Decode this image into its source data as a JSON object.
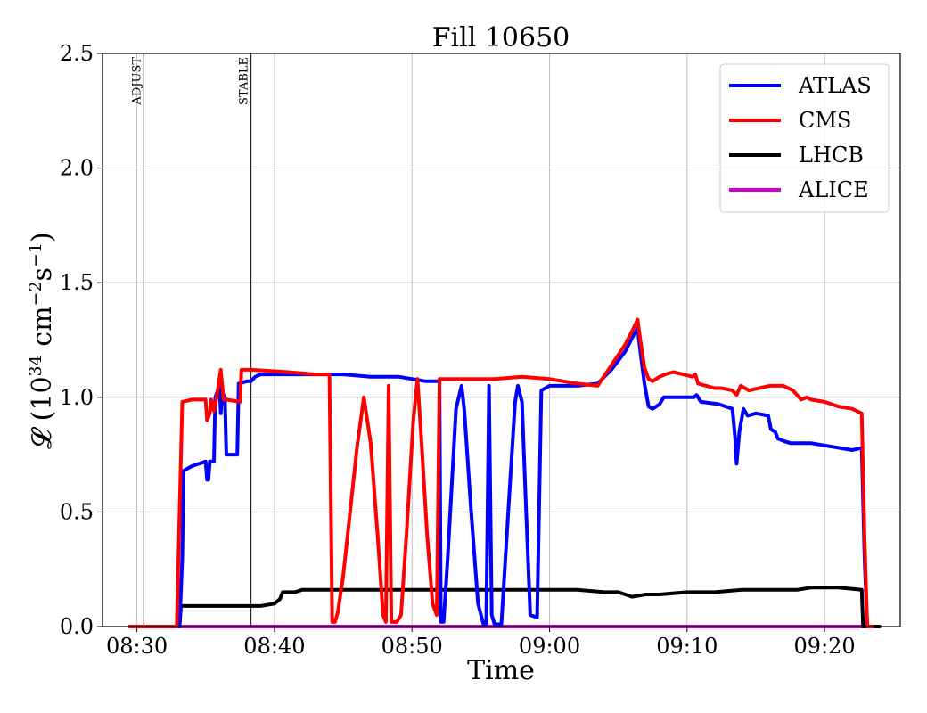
{
  "chart_data": {
    "type": "line",
    "title": "Fill 10650",
    "xlabel": "Time",
    "ylabel": "𝓛 (10",
    "ylabel_sup1": "34",
    "ylabel_mid": " cm",
    "ylabel_sup2": "−2",
    "ylabel_s": "s",
    "ylabel_sup3": "−1",
    "ylabel_end": ")",
    "x_ticks": [
      "08:30",
      "08:40",
      "08:50",
      "09:00",
      "09:10",
      "09:20"
    ],
    "x_tick_minutes": [
      0,
      10,
      20,
      30,
      40,
      50
    ],
    "x_range_minutes": [
      -2.5,
      55.5
    ],
    "y_ticks": [
      "0.0",
      "0.5",
      "1.0",
      "1.5",
      "2.0",
      "2.5"
    ],
    "ylim": [
      0,
      2.5
    ],
    "grid": true,
    "legend_position": "top-right",
    "markers": [
      {
        "label": "ADJUST",
        "t": 0.5
      },
      {
        "label": "STABLE",
        "t": 8.3
      }
    ],
    "series": [
      {
        "name": "ATLAS",
        "color": "#0000ff",
        "points": [
          [
            -0.5,
            0
          ],
          [
            3.1,
            0
          ],
          [
            3.3,
            0.3
          ],
          [
            3.4,
            0.68
          ],
          [
            4,
            0.7
          ],
          [
            5.0,
            0.72
          ],
          [
            5.1,
            0.64
          ],
          [
            5.2,
            0.64
          ],
          [
            5.3,
            0.72
          ],
          [
            5.6,
            0.72
          ],
          [
            5.7,
            1.0
          ],
          [
            6.0,
            1.05
          ],
          [
            6.1,
            0.93
          ],
          [
            6.2,
            1.02
          ],
          [
            6.4,
            1.0
          ],
          [
            6.5,
            0.75
          ],
          [
            7.3,
            0.75
          ],
          [
            7.4,
            1.06
          ],
          [
            8.0,
            1.07
          ],
          [
            8.3,
            1.07
          ],
          [
            8.6,
            1.09
          ],
          [
            9.0,
            1.1
          ],
          [
            11,
            1.1
          ],
          [
            13,
            1.1
          ],
          [
            15,
            1.1
          ],
          [
            17,
            1.09
          ],
          [
            19,
            1.09
          ],
          [
            20,
            1.08
          ],
          [
            21,
            1.07
          ],
          [
            22,
            1.07
          ],
          [
            22.1,
            0.02
          ],
          [
            22.3,
            0.02
          ],
          [
            22.6,
            0.3
          ],
          [
            23.2,
            0.95
          ],
          [
            23.6,
            1.05
          ],
          [
            23.8,
            0.95
          ],
          [
            24.3,
            0.5
          ],
          [
            24.8,
            0.1
          ],
          [
            25.2,
            0.01
          ],
          [
            25.4,
            0.01
          ],
          [
            25.6,
            1.05
          ],
          [
            25.8,
            0.05
          ],
          [
            26.0,
            0.01
          ],
          [
            26.5,
            0.01
          ],
          [
            27.0,
            0.5
          ],
          [
            27.5,
            0.98
          ],
          [
            27.7,
            1.05
          ],
          [
            28.0,
            0.98
          ],
          [
            28.3,
            0.5
          ],
          [
            28.6,
            0.05
          ],
          [
            29.1,
            0.04
          ],
          [
            29.4,
            1.03
          ],
          [
            30,
            1.05
          ],
          [
            32,
            1.05
          ],
          [
            33.5,
            1.06
          ],
          [
            34.5,
            1.12
          ],
          [
            35.5,
            1.2
          ],
          [
            36.1,
            1.27
          ],
          [
            36.4,
            1.3
          ],
          [
            36.6,
            1.2
          ],
          [
            36.9,
            1.06
          ],
          [
            37.2,
            0.96
          ],
          [
            37.5,
            0.95
          ],
          [
            38.0,
            0.97
          ],
          [
            38.3,
            1.0
          ],
          [
            39,
            1.0
          ],
          [
            40.5,
            1.0
          ],
          [
            40.7,
            1.01
          ],
          [
            41,
            0.98
          ],
          [
            42.3,
            0.97
          ],
          [
            43.3,
            0.95
          ],
          [
            43.5,
            0.82
          ],
          [
            43.6,
            0.71
          ],
          [
            43.8,
            0.85
          ],
          [
            44.1,
            0.95
          ],
          [
            44.4,
            0.92
          ],
          [
            45.0,
            0.93
          ],
          [
            45.9,
            0.92
          ],
          [
            46.1,
            0.86
          ],
          [
            46.4,
            0.85
          ],
          [
            46.6,
            0.82
          ],
          [
            47.0,
            0.81
          ],
          [
            47.5,
            0.8
          ],
          [
            48.0,
            0.8
          ],
          [
            49,
            0.8
          ],
          [
            50,
            0.79
          ],
          [
            51,
            0.78
          ],
          [
            52,
            0.77
          ],
          [
            52.7,
            0.78
          ],
          [
            52.9,
            0.3
          ],
          [
            53.1,
            0
          ],
          [
            53.5,
            0
          ]
        ]
      },
      {
        "name": "CMS",
        "color": "#ff0000",
        "points": [
          [
            -0.5,
            0
          ],
          [
            2.9,
            0
          ],
          [
            3.3,
            0.98
          ],
          [
            4,
            0.99
          ],
          [
            5.0,
            0.99
          ],
          [
            5.1,
            0.9
          ],
          [
            5.3,
            0.93
          ],
          [
            5.4,
            0.99
          ],
          [
            5.6,
            0.94
          ],
          [
            5.8,
            1.0
          ],
          [
            6.1,
            1.12
          ],
          [
            6.3,
            0.99
          ],
          [
            6.5,
            0.99
          ],
          [
            7.5,
            0.98
          ],
          [
            7.6,
            1.12
          ],
          [
            8.3,
            1.12
          ],
          [
            11,
            1.11
          ],
          [
            13,
            1.1
          ],
          [
            14,
            1.1
          ],
          [
            14.2,
            0.02
          ],
          [
            14.4,
            0.02
          ],
          [
            14.6,
            0.06
          ],
          [
            15.0,
            0.22
          ],
          [
            15.5,
            0.5
          ],
          [
            16.0,
            0.78
          ],
          [
            16.5,
            1.0
          ],
          [
            17.0,
            0.8
          ],
          [
            17.5,
            0.4
          ],
          [
            17.9,
            0.05
          ],
          [
            18.1,
            0.02
          ],
          [
            18.3,
            1.05
          ],
          [
            18.5,
            0.02
          ],
          [
            18.9,
            0.02
          ],
          [
            19.2,
            0.05
          ],
          [
            19.6,
            0.4
          ],
          [
            20.1,
            0.9
          ],
          [
            20.4,
            1.08
          ],
          [
            20.7,
            0.8
          ],
          [
            21.1,
            0.4
          ],
          [
            21.5,
            0.1
          ],
          [
            21.8,
            0.05
          ],
          [
            22.0,
            1.08
          ],
          [
            23,
            1.08
          ],
          [
            26,
            1.08
          ],
          [
            28,
            1.09
          ],
          [
            30,
            1.08
          ],
          [
            32,
            1.06
          ],
          [
            33.5,
            1.05
          ],
          [
            34.5,
            1.14
          ],
          [
            35.5,
            1.23
          ],
          [
            36.1,
            1.3
          ],
          [
            36.4,
            1.34
          ],
          [
            36.6,
            1.25
          ],
          [
            36.9,
            1.13
          ],
          [
            37.2,
            1.08
          ],
          [
            37.5,
            1.07
          ],
          [
            38.0,
            1.09
          ],
          [
            38.4,
            1.1
          ],
          [
            39.0,
            1.11
          ],
          [
            40.4,
            1.09
          ],
          [
            40.6,
            1.1
          ],
          [
            40.8,
            1.06
          ],
          [
            42.0,
            1.04
          ],
          [
            42.5,
            1.04
          ],
          [
            43.3,
            1.03
          ],
          [
            43.6,
            1.01
          ],
          [
            43.9,
            1.05
          ],
          [
            44.5,
            1.03
          ],
          [
            46,
            1.05
          ],
          [
            47,
            1.05
          ],
          [
            47.7,
            1.03
          ],
          [
            48.3,
            0.99
          ],
          [
            48.7,
            1.0
          ],
          [
            49,
            0.99
          ],
          [
            50,
            0.98
          ],
          [
            51,
            0.96
          ],
          [
            52,
            0.95
          ],
          [
            52.7,
            0.93
          ],
          [
            52.9,
            0.4
          ],
          [
            53.1,
            0
          ],
          [
            53.5,
            0
          ]
        ]
      },
      {
        "name": "LHCB",
        "color": "#000000",
        "points": [
          [
            -0.5,
            0
          ],
          [
            3.1,
            0
          ],
          [
            3.2,
            0.09
          ],
          [
            4,
            0.09
          ],
          [
            5.5,
            0.09
          ],
          [
            6.5,
            0.09
          ],
          [
            8.3,
            0.09
          ],
          [
            9.0,
            0.09
          ],
          [
            10.0,
            0.1
          ],
          [
            10.4,
            0.12
          ],
          [
            10.6,
            0.15
          ],
          [
            11.5,
            0.15
          ],
          [
            12,
            0.16
          ],
          [
            13,
            0.16
          ],
          [
            14,
            0.16
          ],
          [
            16,
            0.16
          ],
          [
            18,
            0.16
          ],
          [
            20,
            0.16
          ],
          [
            22,
            0.16
          ],
          [
            24,
            0.16
          ],
          [
            26,
            0.16
          ],
          [
            28,
            0.16
          ],
          [
            30,
            0.16
          ],
          [
            32,
            0.16
          ],
          [
            34,
            0.15
          ],
          [
            35,
            0.15
          ],
          [
            36,
            0.13
          ],
          [
            37,
            0.14
          ],
          [
            38,
            0.14
          ],
          [
            40,
            0.15
          ],
          [
            42,
            0.15
          ],
          [
            44,
            0.16
          ],
          [
            46,
            0.16
          ],
          [
            48,
            0.16
          ],
          [
            49,
            0.17
          ],
          [
            51,
            0.17
          ],
          [
            52.7,
            0.16
          ],
          [
            52.8,
            0.0
          ],
          [
            54.0,
            0.0
          ]
        ]
      },
      {
        "name": "ALICE",
        "color": "#cc00cc",
        "points": [
          [
            -0.5,
            0
          ],
          [
            53.5,
            0
          ]
        ]
      }
    ]
  }
}
